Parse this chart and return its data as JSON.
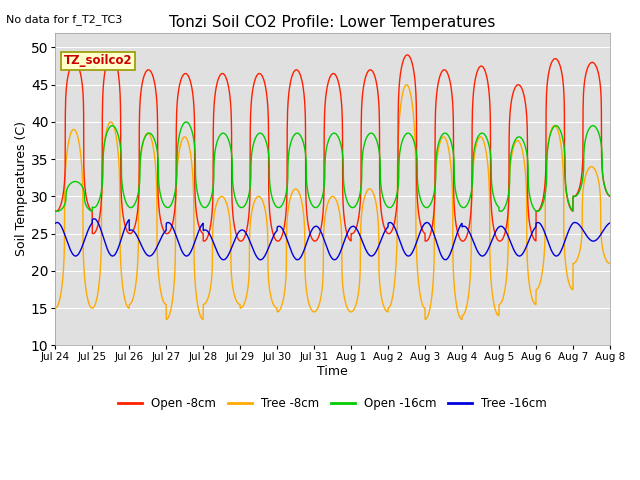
{
  "title": "Tonzi Soil CO2 Profile: Lower Temperatures",
  "subtitle": "No data for f_T2_TC3",
  "xlabel": "Time",
  "ylabel": "Soil Temperatures (C)",
  "legend_label": "TZ_soilco2",
  "ylim": [
    10,
    52
  ],
  "yticks": [
    10,
    15,
    20,
    25,
    30,
    35,
    40,
    45,
    50
  ],
  "bg_color": "#e0e0e0",
  "fig_color": "#ffffff",
  "series_colors": {
    "open_8cm": "#ff2000",
    "tree_8cm": "#ffaa00",
    "open_16cm": "#00cc00",
    "tree_16cm": "#0000dd"
  },
  "legend_items": [
    {
      "label": "Open -8cm",
      "color": "#ff2000"
    },
    {
      "label": "Tree -8cm",
      "color": "#ffaa00"
    },
    {
      "label": "Open -16cm",
      "color": "#00cc00"
    },
    {
      "label": "Tree -16cm",
      "color": "#0000dd"
    }
  ],
  "xtick_labels": [
    "Jul 24",
    "Jul 25",
    "Jul 26",
    "Jul 27",
    "Jul 28",
    "Jul 29",
    "Jul 30",
    "Jul 31",
    "Aug 1",
    "Aug 2",
    "Aug 3",
    "Aug 4",
    "Aug 5",
    "Aug 6",
    "Aug 7",
    "Aug 8"
  ],
  "n_days": 15,
  "open8_peaks": [
    48,
    49,
    47,
    46.5,
    46.5,
    46.5,
    47,
    46.5,
    47,
    49,
    47,
    47.5,
    45,
    48.5,
    48
  ],
  "open8_troughs": [
    28,
    25,
    25,
    25,
    24,
    24,
    24,
    24,
    25,
    25,
    24,
    24,
    24,
    28,
    30
  ],
  "tree8_peaks": [
    39,
    40,
    38.5,
    38,
    30,
    30,
    31,
    30,
    31,
    45,
    38,
    38,
    37.5,
    39.5,
    34
  ],
  "tree8_troughs": [
    15,
    15,
    15.5,
    13.5,
    15.5,
    15,
    14.5,
    14.5,
    14.5,
    15,
    13.5,
    14,
    15.5,
    17.5,
    21
  ],
  "open16_peaks": [
    32,
    39.5,
    38.5,
    40,
    38.5,
    38.5,
    38.5,
    38.5,
    38.5,
    38.5,
    38.5,
    38.5,
    38,
    39.5,
    39.5
  ],
  "open16_troughs": [
    28,
    28.5,
    28.5,
    28.5,
    28.5,
    28.5,
    28.5,
    28.5,
    28.5,
    28.5,
    28.5,
    28.5,
    28,
    28,
    30
  ],
  "tree16_peaks": [
    26.5,
    27,
    25.5,
    26.5,
    25.5,
    25.5,
    26,
    26,
    26,
    26.5,
    26.5,
    26,
    26,
    26.5,
    26.5
  ],
  "tree16_troughs": [
    22,
    22,
    22,
    22,
    21.5,
    21.5,
    21.5,
    21.5,
    22,
    22,
    21.5,
    22,
    22,
    22,
    24
  ]
}
